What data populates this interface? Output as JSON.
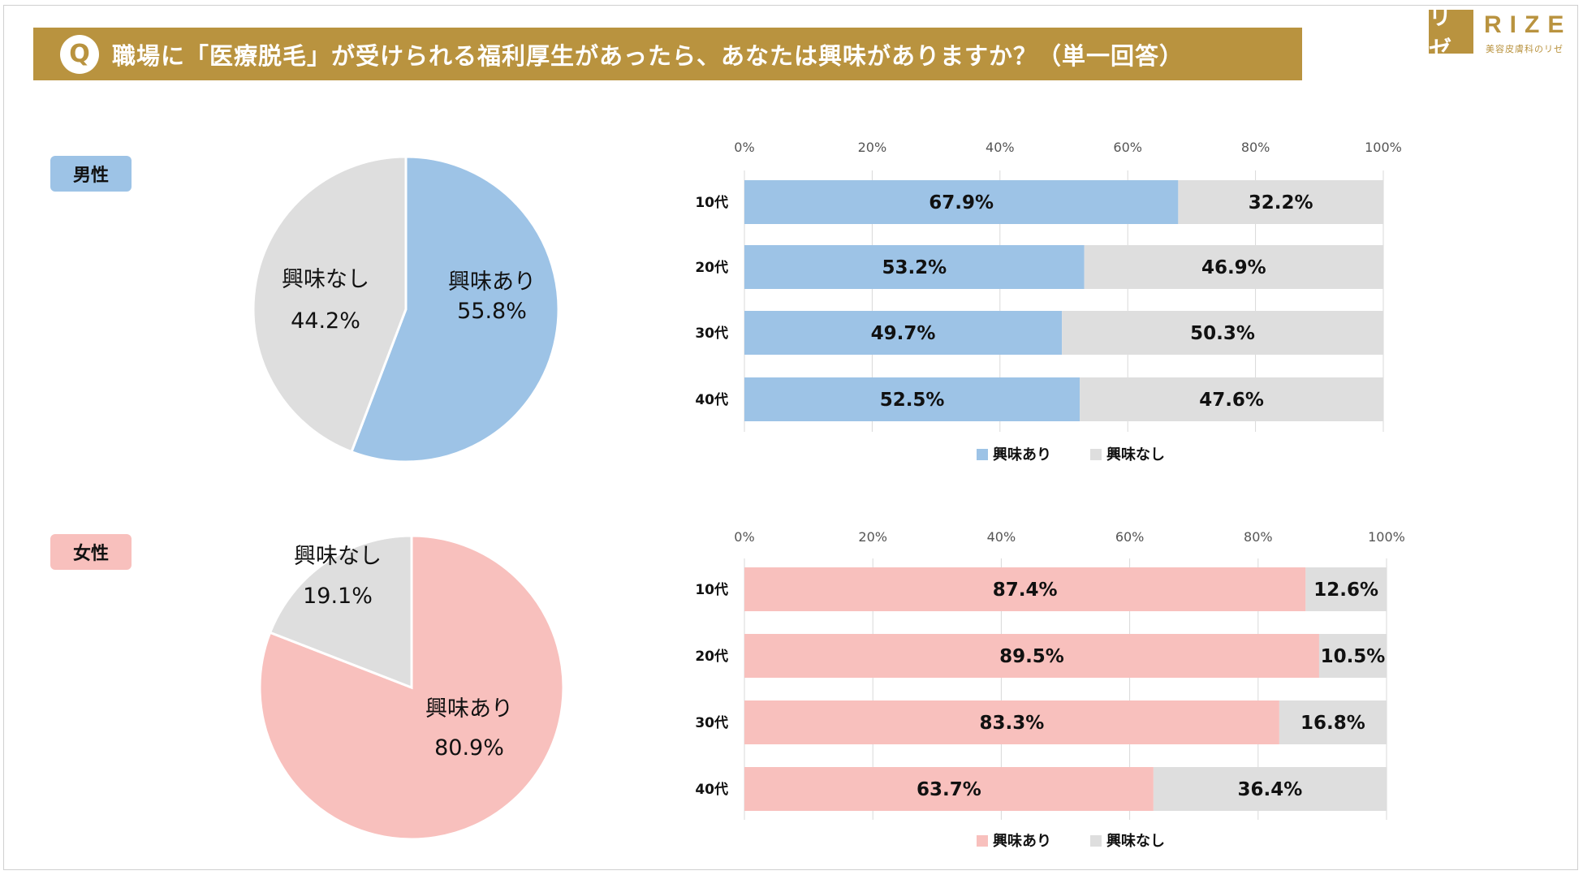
{
  "header": {
    "q_icon": "Q",
    "title": "職場に「医療脱毛」が受けられる福利厚生があったら、あなたは興味がありますか？（単一回答）"
  },
  "logo": {
    "mark": "リゼ",
    "word": "RIZE",
    "sub": "美容皮膚科のリゼ"
  },
  "colors": {
    "gold": "#b9933f",
    "male": "#9dc3e6",
    "female": "#f8c0bd",
    "none": "#dedede"
  },
  "male": {
    "label": "男性"
  },
  "female": {
    "label": "女性"
  },
  "chart_data": [
    {
      "type": "pie",
      "group": "男性",
      "slices": [
        {
          "label": "興味あり",
          "value": 55.8,
          "display": "55.8%"
        },
        {
          "label": "興味なし",
          "value": 44.2,
          "display": "44.2%"
        }
      ]
    },
    {
      "type": "bar",
      "group": "男性",
      "orientation": "horizontal-stacked-100",
      "categories": [
        "10代",
        "20代",
        "30代",
        "40代"
      ],
      "series": [
        {
          "name": "興味あり",
          "values": [
            67.9,
            53.2,
            49.7,
            52.5
          ],
          "display": [
            "67.9%",
            "53.2%",
            "49.7%",
            "52.5%"
          ]
        },
        {
          "name": "興味なし",
          "values": [
            32.2,
            46.9,
            50.3,
            47.6
          ],
          "display": [
            "32.2%",
            "46.9%",
            "50.3%",
            "47.6%"
          ]
        }
      ],
      "ticks": [
        "0%",
        "20%",
        "40%",
        "60%",
        "80%",
        "100%"
      ],
      "xlim": [
        0,
        100
      ],
      "legend": "bottom"
    },
    {
      "type": "pie",
      "group": "女性",
      "slices": [
        {
          "label": "興味あり",
          "value": 80.9,
          "display": "80.9%"
        },
        {
          "label": "興味なし",
          "value": 19.1,
          "display": "19.1%"
        }
      ]
    },
    {
      "type": "bar",
      "group": "女性",
      "orientation": "horizontal-stacked-100",
      "categories": [
        "10代",
        "20代",
        "30代",
        "40代"
      ],
      "series": [
        {
          "name": "興味あり",
          "values": [
            87.4,
            89.5,
            83.3,
            63.7
          ],
          "display": [
            "87.4%",
            "89.5%",
            "83.3%",
            "63.7%"
          ]
        },
        {
          "name": "興味なし",
          "values": [
            12.6,
            10.5,
            16.8,
            36.4
          ],
          "display": [
            "12.6%",
            "10.5%",
            "16.8%",
            "36.4%"
          ]
        }
      ],
      "ticks": [
        "0%",
        "20%",
        "40%",
        "60%",
        "80%",
        "100%"
      ],
      "xlim": [
        0,
        100
      ],
      "legend": "bottom"
    }
  ]
}
